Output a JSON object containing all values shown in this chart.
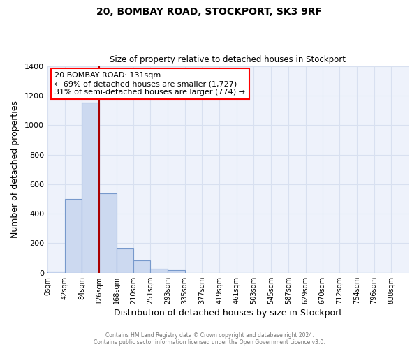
{
  "title_line1": "20, BOMBAY ROAD, STOCKPORT, SK3 9RF",
  "title_line2": "Size of property relative to detached houses in Stockport",
  "xlabel": "Distribution of detached houses by size in Stockport",
  "ylabel": "Number of detached properties",
  "bar_color": "#ccd9f0",
  "bar_edge_color": "#7799cc",
  "background_color": "#eef2fb",
  "grid_color": "#d8e0f0",
  "bin_labels": [
    "0sqm",
    "42sqm",
    "84sqm",
    "126sqm",
    "168sqm",
    "210sqm",
    "251sqm",
    "293sqm",
    "335sqm",
    "377sqm",
    "419sqm",
    "461sqm",
    "503sqm",
    "545sqm",
    "587sqm",
    "629sqm",
    "670sqm",
    "712sqm",
    "754sqm",
    "796sqm",
    "838sqm"
  ],
  "bar_heights": [
    10,
    500,
    1150,
    540,
    165,
    85,
    28,
    20,
    0,
    0,
    0,
    0,
    0,
    0,
    0,
    0,
    0,
    0,
    0,
    0
  ],
  "ylim": [
    0,
    1400
  ],
  "yticks": [
    0,
    200,
    400,
    600,
    800,
    1000,
    1200,
    1400
  ],
  "bin_edges": [
    0,
    42,
    84,
    126,
    168,
    210,
    251,
    293,
    335,
    377,
    419,
    461,
    503,
    545,
    587,
    629,
    670,
    712,
    754,
    796,
    838
  ],
  "annotation_title": "20 BOMBAY ROAD: 131sqm",
  "annotation_line2": "← 69% of detached houses are smaller (1,727)",
  "annotation_line3": "31% of semi-detached houses are larger (774) →",
  "red_line_x": 126,
  "footer_line1": "Contains HM Land Registry data © Crown copyright and database right 2024.",
  "footer_line2": "Contains public sector information licensed under the Open Government Licence v3.0."
}
